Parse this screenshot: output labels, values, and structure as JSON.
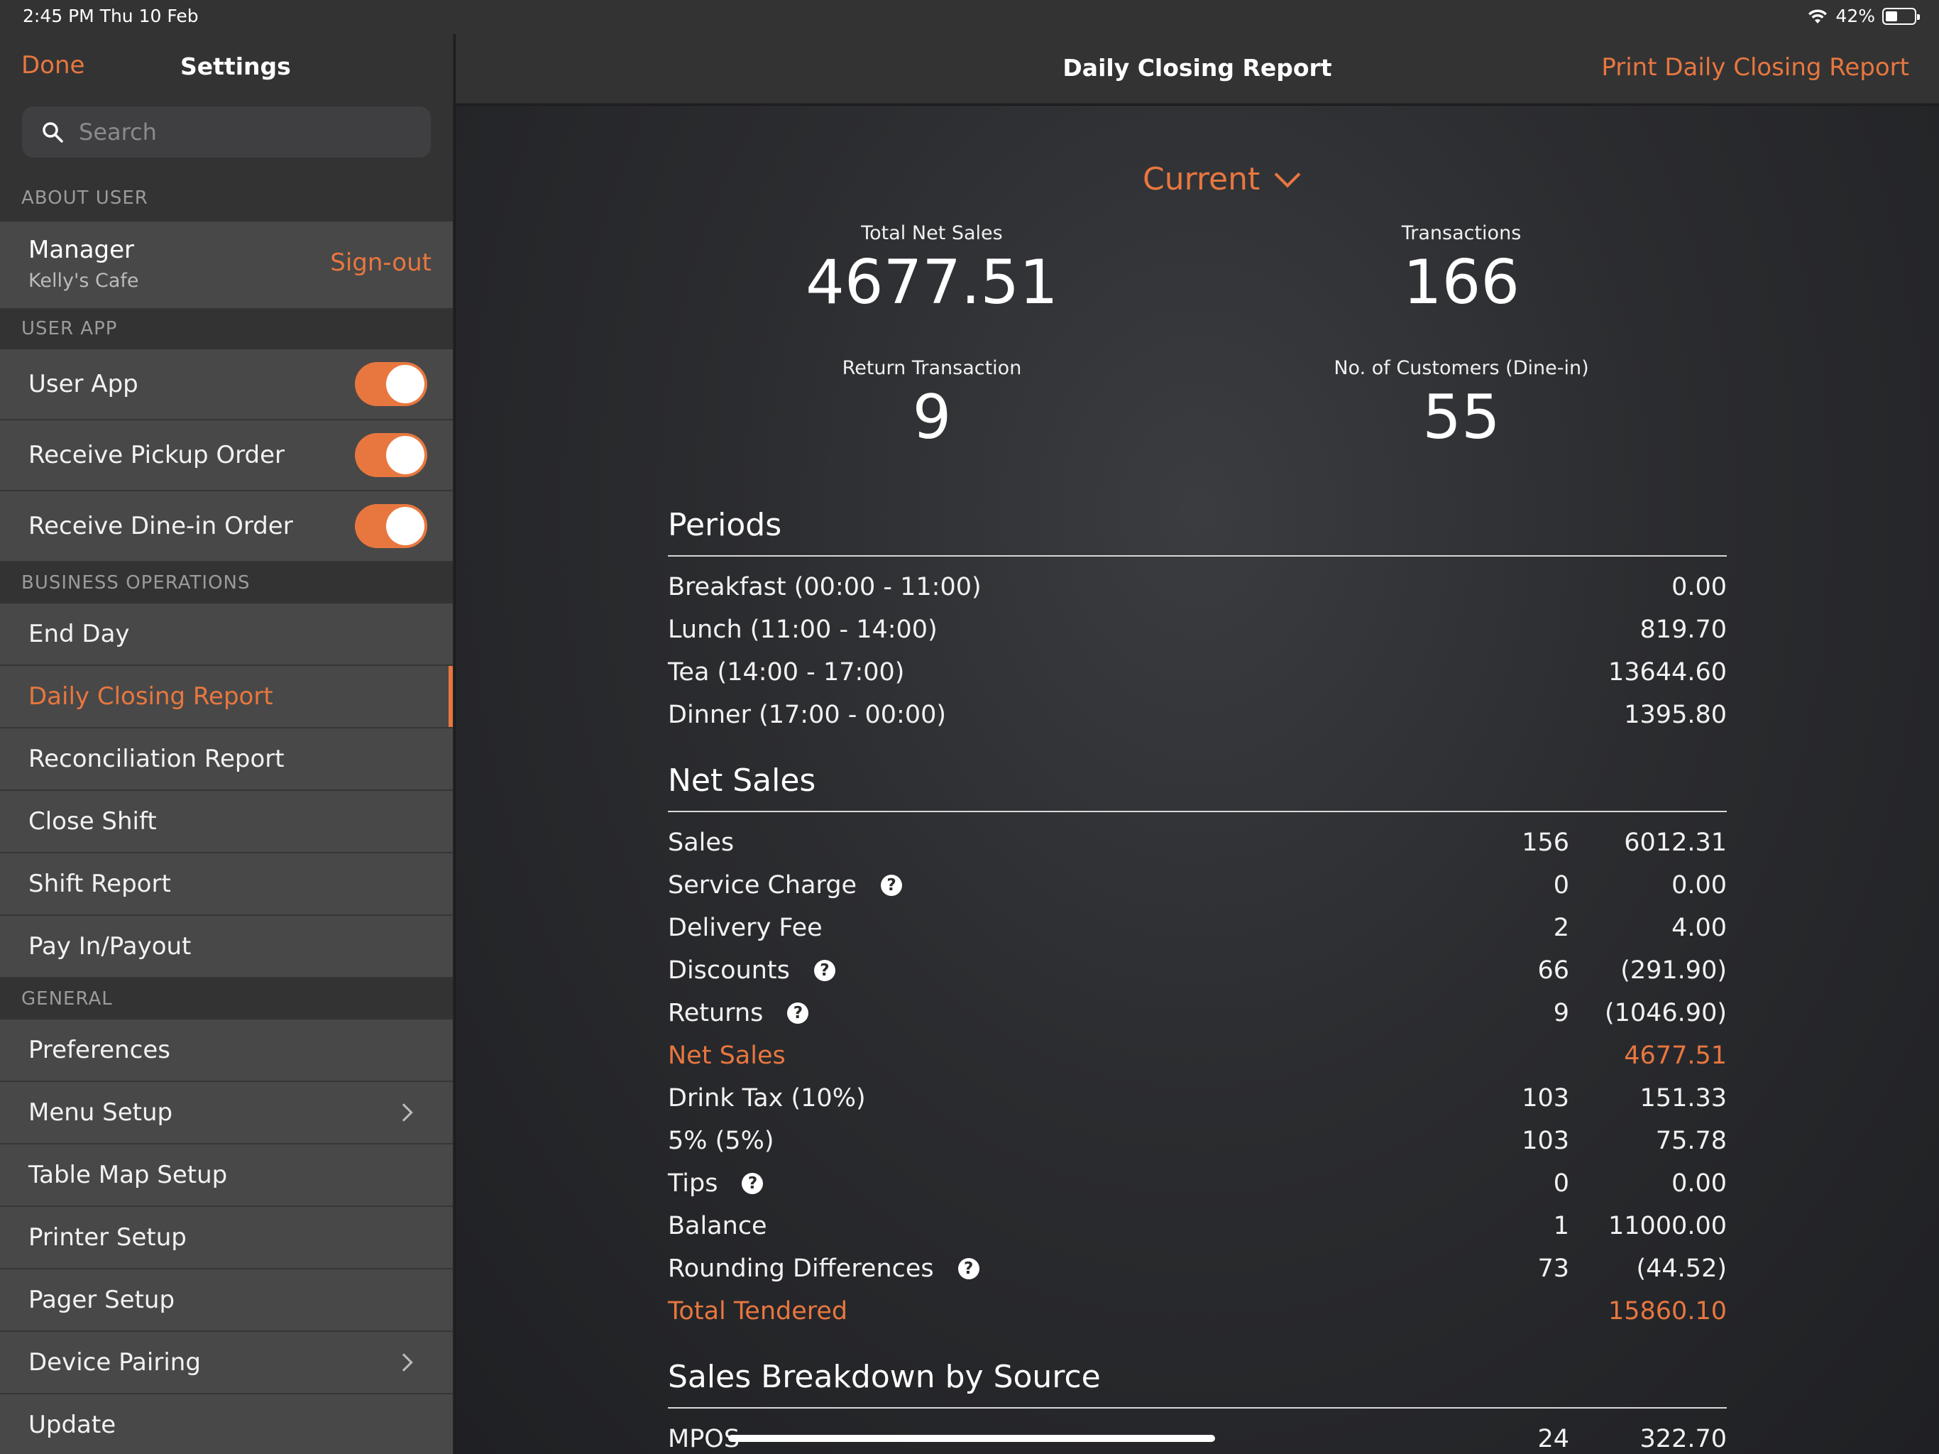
{
  "status_bar": {
    "time": "2:45 PM   Thu 10 Feb",
    "battery": "42%"
  },
  "sidebar": {
    "done": "Done",
    "title": "Settings",
    "search_placeholder": "Search",
    "sections": {
      "about_user": "ABOUT USER",
      "user_app": "USER APP",
      "business_operations": "BUSINESS OPERATIONS",
      "general": "GENERAL"
    },
    "user": {
      "role": "Manager",
      "store": "Kelly's Cafe",
      "sign_out": "Sign-out"
    },
    "user_app_items": [
      {
        "label": "User App",
        "enabled": true
      },
      {
        "label": "Receive Pickup Order",
        "enabled": true
      },
      {
        "label": "Receive Dine-in Order",
        "enabled": true
      }
    ],
    "business_items": [
      "End Day",
      "Daily Closing Report",
      "Reconciliation Report",
      "Close Shift",
      "Shift Report",
      "Pay In/Payout"
    ],
    "general_items": [
      "Preferences",
      "Menu Setup",
      "Table Map Setup",
      "Printer Setup",
      "Pager Setup",
      "Device Pairing",
      "Update"
    ]
  },
  "header": {
    "title": "Daily Closing Report",
    "print": "Print Daily Closing Report"
  },
  "report": {
    "period": "Current",
    "stats": {
      "total_net_sales": {
        "label": "Total Net Sales",
        "value": "4677.51"
      },
      "transactions": {
        "label": "Transactions",
        "value": "166"
      },
      "return_transaction": {
        "label": "Return Transaction",
        "value": "9"
      },
      "customers": {
        "label": "No. of Customers (Dine-in)",
        "value": "55"
      }
    },
    "periods_title": "Periods",
    "periods": [
      {
        "label": "Breakfast (00:00 - 11:00)",
        "value": "0.00"
      },
      {
        "label": "Lunch (11:00 - 14:00)",
        "value": "819.70"
      },
      {
        "label": "Tea (14:00 - 17:00)",
        "value": "13644.60"
      },
      {
        "label": "Dinner (17:00 - 00:00)",
        "value": "1395.80"
      }
    ],
    "net_sales_title": "Net Sales",
    "net_sales": [
      {
        "label": "Sales",
        "count": "156",
        "value": "6012.31"
      },
      {
        "label": "Service Charge",
        "count": "0",
        "value": "0.00"
      },
      {
        "label": "Delivery Fee",
        "count": "2",
        "value": "4.00"
      },
      {
        "label": "Discounts",
        "count": "66",
        "value": "(291.90)"
      },
      {
        "label": "Returns",
        "count": "9",
        "value": "(1046.90)"
      },
      {
        "label": "Net Sales",
        "count": "",
        "value": "4677.51"
      },
      {
        "label": "Drink Tax (10%)",
        "count": "103",
        "value": "151.33"
      },
      {
        "label": "5% (5%)",
        "count": "103",
        "value": "75.78"
      },
      {
        "label": "Tips",
        "count": "0",
        "value": "0.00"
      },
      {
        "label": "Balance",
        "count": "1",
        "value": "11000.00"
      },
      {
        "label": "Rounding Differences",
        "count": "73",
        "value": "(44.52)"
      },
      {
        "label": "Total Tendered",
        "count": "",
        "value": "15860.10"
      }
    ],
    "source_title": "Sales Breakdown by Source",
    "sources": [
      {
        "label": "MPOS",
        "count": "24",
        "value": "322.70"
      }
    ]
  },
  "colors": {
    "accent": "#e8773f",
    "sidebar_bg": "#333333",
    "row_bg": "#484848"
  }
}
